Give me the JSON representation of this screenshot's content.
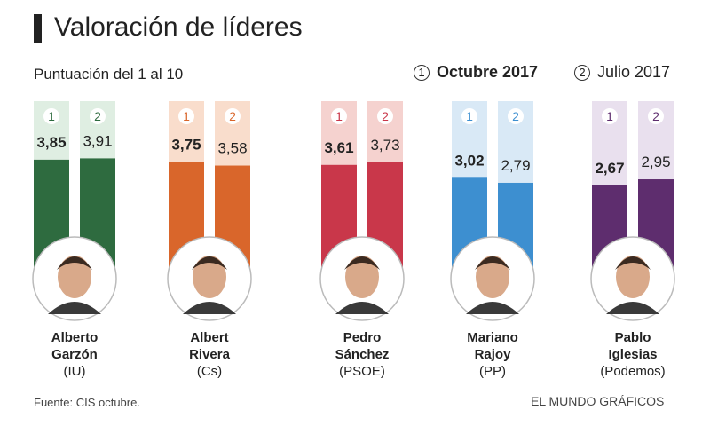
{
  "header": {
    "title": "Valoración de líderes",
    "subtitle": "Puntuación del 1 al 10"
  },
  "legend": {
    "current": {
      "number": "1",
      "label": "Octubre 2017"
    },
    "previous": {
      "number": "2",
      "label": "Julio 2017"
    }
  },
  "leaders": [
    {
      "name_line1": "Alberto",
      "name_line2": "Garzón",
      "party": "(IU)"
    },
    {
      "name_line1": "Albert",
      "name_line2": "Rivera",
      "party": "(Cs)"
    },
    {
      "name_line1": "Pedro",
      "name_line2": "Sánchez",
      "party": "(PSOE)"
    },
    {
      "name_line1": "Mariano",
      "name_line2": "Rajoy",
      "party": "(PP)"
    },
    {
      "name_line1": "Pablo",
      "name_line2": "Iglesias",
      "party": "(Podemos)"
    }
  ],
  "chart_data": {
    "type": "bar",
    "title": "Valoración de líderes",
    "subtitle": "Puntuación del 1 al 10",
    "categories": [
      "Alberto Garzón (IU)",
      "Albert Rivera (Cs)",
      "Pedro Sánchez (PSOE)",
      "Mariano Rajoy (PP)",
      "Pablo Iglesias (Podemos)"
    ],
    "series": [
      {
        "name": "Octubre 2017",
        "marker": "1",
        "values": [
          3.85,
          3.75,
          3.61,
          3.02,
          2.67
        ],
        "labels": [
          "3,85",
          "3,75",
          "3,61",
          "3,02",
          "2,67"
        ]
      },
      {
        "name": "Julio 2017",
        "marker": "2",
        "values": [
          3.91,
          3.58,
          3.73,
          2.79,
          2.95
        ],
        "labels": [
          "3,91",
          "3,58",
          "3,73",
          "2,79",
          "2,95"
        ]
      }
    ],
    "ylim": [
      1,
      10
    ],
    "colors": [
      "#2e6b3f",
      "#d9662b",
      "#c9374a",
      "#3d8fd0",
      "#5e2d6e"
    ],
    "light_colors": [
      "#dfeee2",
      "#f9ddcc",
      "#f5d2cf",
      "#d9e9f6",
      "#e9e0ee"
    ]
  },
  "footer": {
    "source": "Fuente: CIS octubre.",
    "credit": "EL MUNDO GRÁFICOS"
  }
}
